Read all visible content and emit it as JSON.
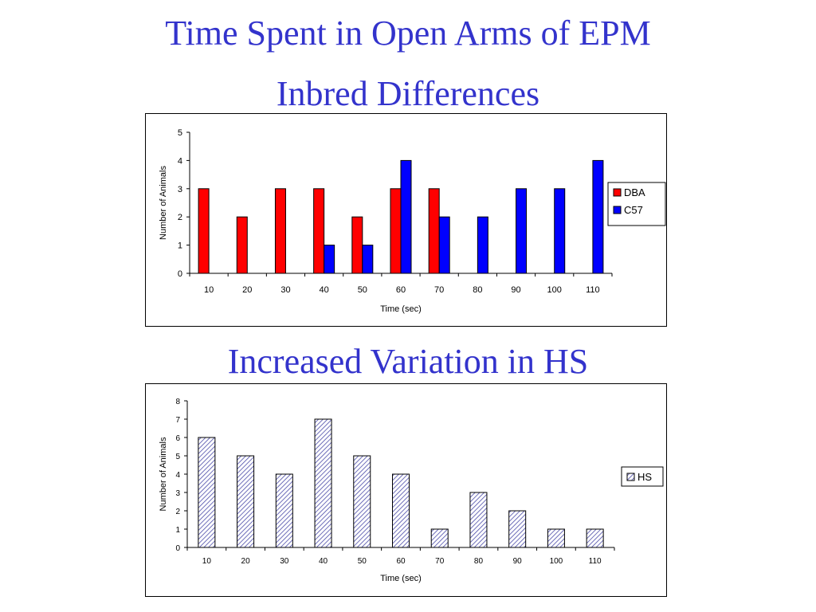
{
  "slide": {
    "title": "Time Spent in Open Arms of EPM",
    "subtitle1": "Inbred Differences",
    "subtitle2": "Increased Variation in HS"
  },
  "colors": {
    "title": "#3333cc",
    "dba": "#ff0000",
    "c57": "#0000ff",
    "hs_hatch": "#4a4aa8"
  },
  "chart_data": [
    {
      "type": "bar",
      "title": "",
      "xlabel": "Time (sec)",
      "ylabel": "Number of Animals",
      "categories": [
        "10",
        "20",
        "30",
        "40",
        "50",
        "60",
        "70",
        "80",
        "90",
        "100",
        "110"
      ],
      "ylim": [
        0,
        5
      ],
      "yticks": [
        0,
        1,
        2,
        3,
        4,
        5
      ],
      "grid": false,
      "legend": "right",
      "series": [
        {
          "name": "DBA",
          "values": [
            3,
            2,
            3,
            3,
            2,
            3,
            3,
            0,
            0,
            0,
            0
          ],
          "color": "#ff0000"
        },
        {
          "name": "C57",
          "values": [
            0,
            0,
            0,
            1,
            1,
            4,
            2,
            2,
            3,
            3,
            4
          ],
          "color": "#0000ff"
        }
      ]
    },
    {
      "type": "bar",
      "title": "",
      "xlabel": "Time (sec)",
      "ylabel": "Number of Animals",
      "categories": [
        "10",
        "20",
        "30",
        "40",
        "50",
        "60",
        "70",
        "80",
        "90",
        "100",
        "110"
      ],
      "ylim": [
        0,
        8
      ],
      "yticks": [
        0,
        1,
        2,
        3,
        4,
        5,
        6,
        7,
        8
      ],
      "grid": false,
      "legend": "right",
      "series": [
        {
          "name": "HS",
          "values": [
            6,
            5,
            4,
            7,
            5,
            4,
            1,
            3,
            2,
            1,
            1
          ],
          "pattern": "hatch"
        }
      ]
    }
  ]
}
